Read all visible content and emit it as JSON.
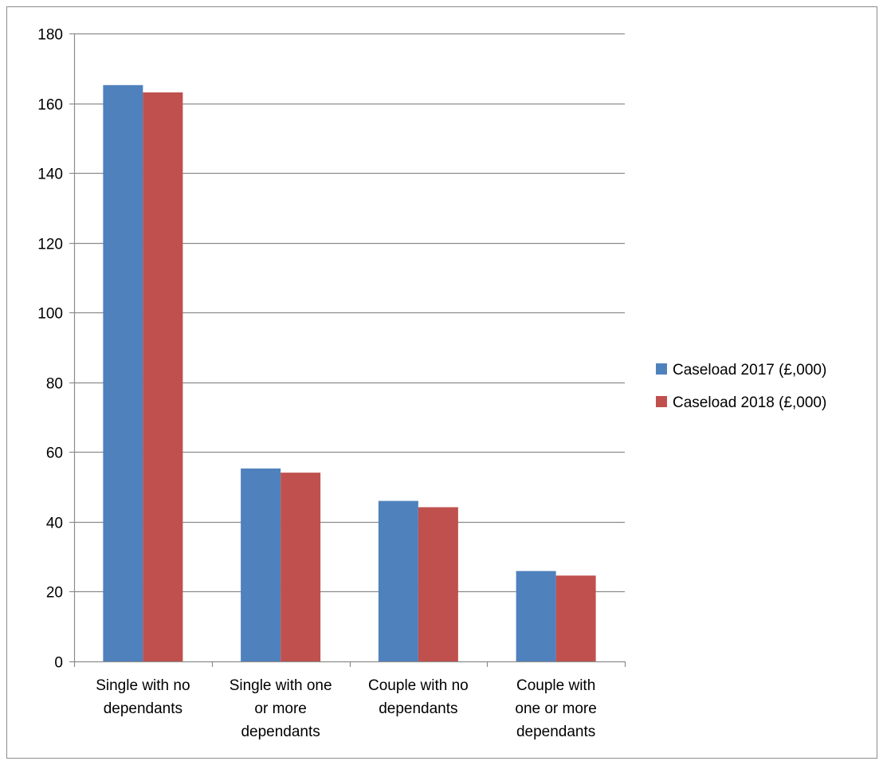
{
  "chart_data": {
    "type": "bar",
    "title": "",
    "xlabel": "",
    "ylabel": "",
    "categories": [
      [
        "Single with no",
        "dependants"
      ],
      [
        "Single with one",
        "or more",
        "dependants"
      ],
      [
        "Couple with no",
        "dependants"
      ],
      [
        "Couple with",
        "one or more",
        "dependants"
      ]
    ],
    "series": [
      {
        "name": "Caseload 2017 (£,000)",
        "color": "#4f81bd",
        "values": [
          165.2,
          55.3,
          46.0,
          25.9
        ]
      },
      {
        "name": "Caseload 2018 (£,000)",
        "color": "#c0504d",
        "values": [
          163.1,
          54.1,
          44.2,
          24.6
        ]
      }
    ],
    "ylim": [
      0,
      180
    ],
    "yticks": [
      0,
      20,
      40,
      60,
      80,
      100,
      120,
      140,
      160,
      180
    ],
    "grid": true,
    "legend_position": "right",
    "colors": {
      "gridline": "#8c8c8c",
      "axis": "#8c8c8c",
      "frame": "#8c8c8c"
    }
  }
}
